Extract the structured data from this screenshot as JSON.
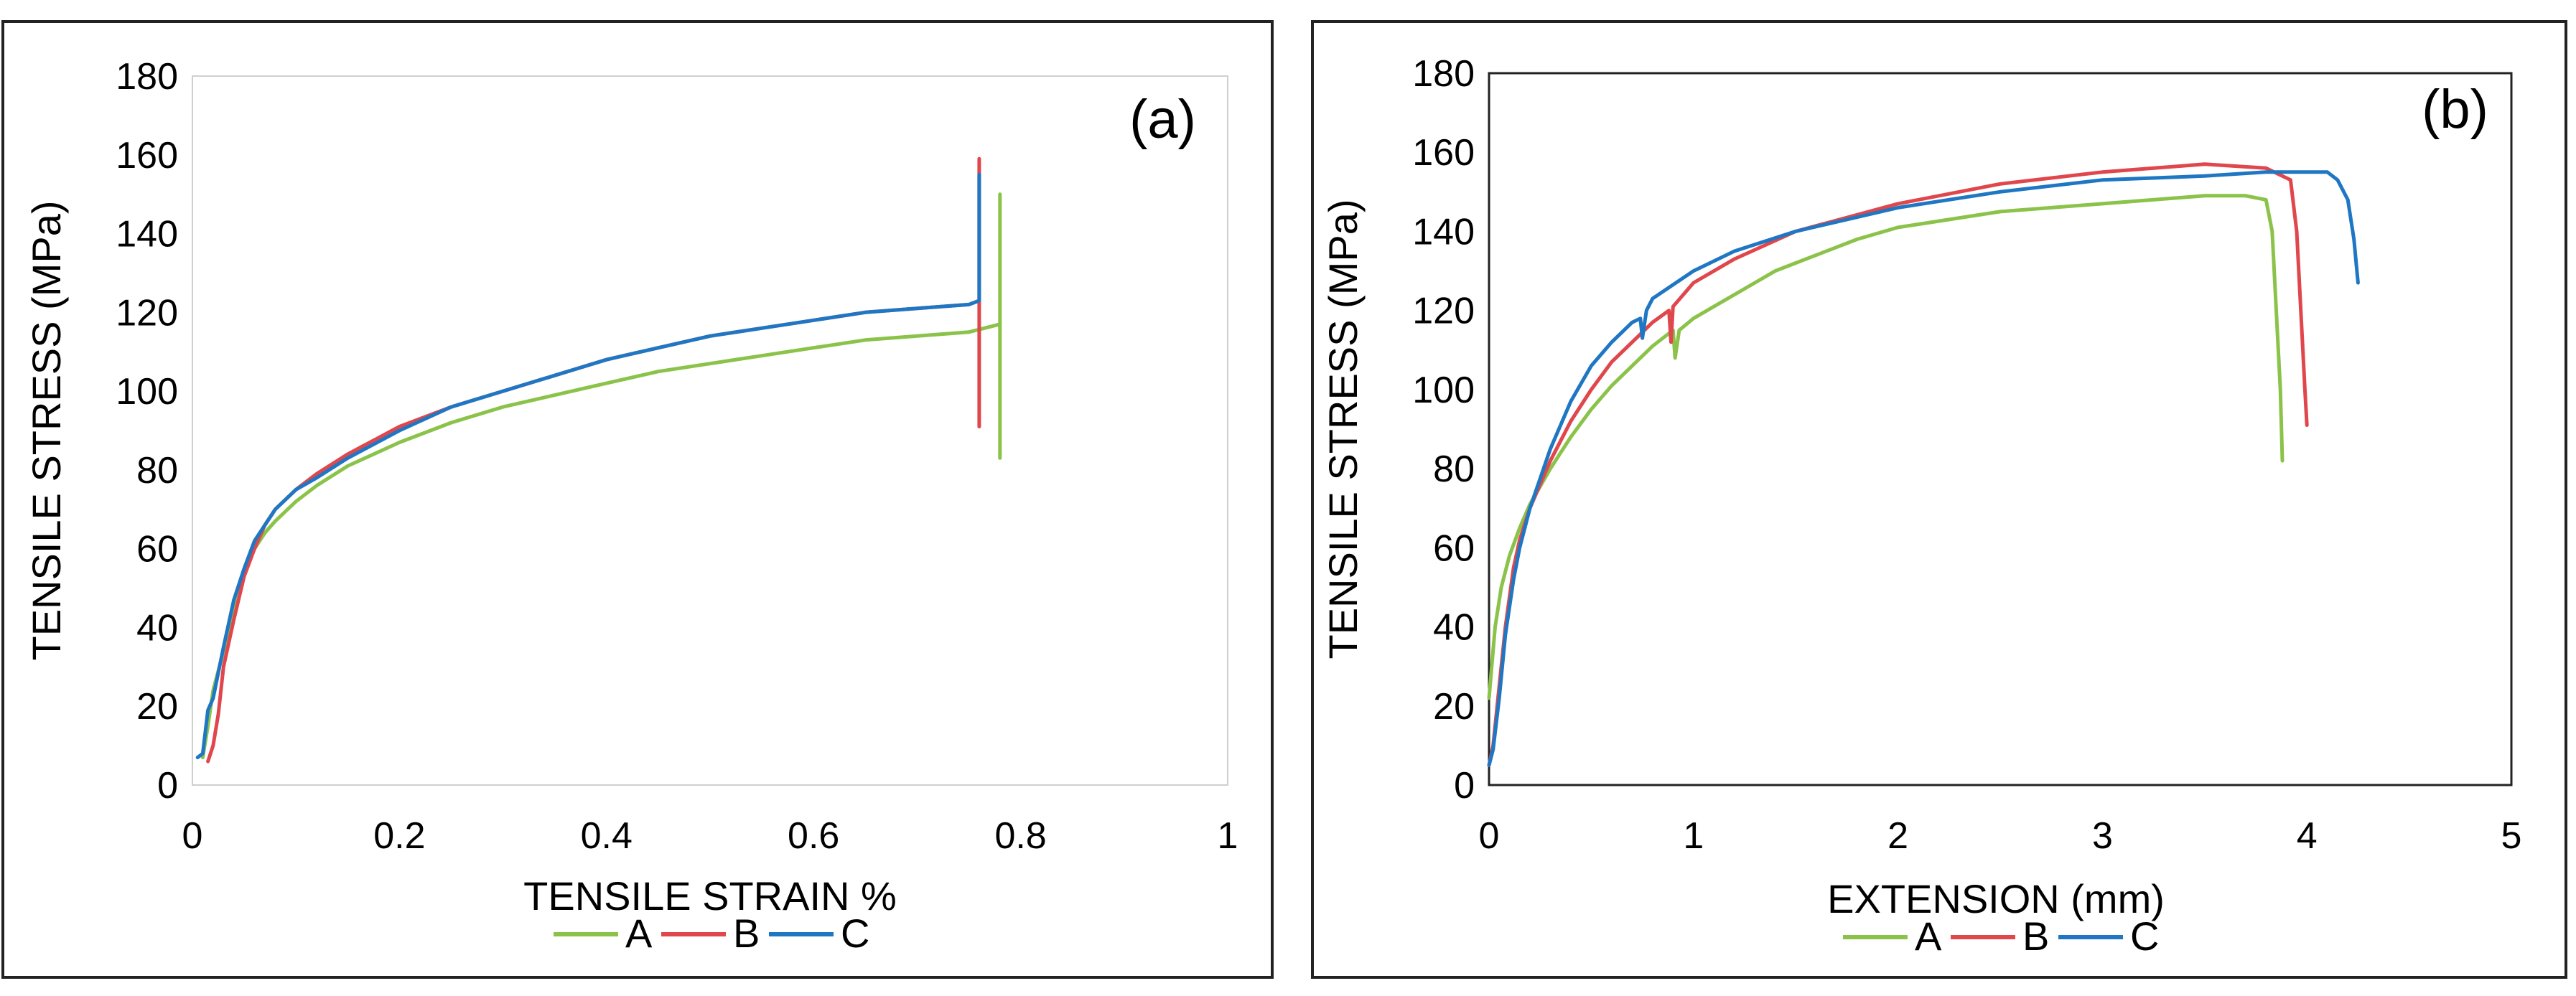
{
  "chart_data": [
    {
      "type": "line",
      "panel_label": "(a)",
      "xlabel": "TENSILE STRAIN %",
      "ylabel": "TENSILE STRESS (MPa)",
      "xlim": [
        0,
        1
      ],
      "ylim": [
        0,
        180
      ],
      "xticks": [
        "0",
        "0.2",
        "0.4",
        "0.6",
        "0.8",
        "1"
      ],
      "yticks": [
        "0",
        "20",
        "40",
        "60",
        "80",
        "100",
        "120",
        "140",
        "160",
        "180"
      ],
      "grid": false,
      "legend_position": "bottom",
      "series": [
        {
          "name": "A",
          "color": "#8bc34a",
          "x": [
            0.01,
            0.015,
            0.02,
            0.03,
            0.04,
            0.05,
            0.06,
            0.07,
            0.08,
            0.1,
            0.12,
            0.15,
            0.2,
            0.25,
            0.3,
            0.35,
            0.4,
            0.45,
            0.5,
            0.55,
            0.6,
            0.65,
            0.7,
            0.75,
            0.78,
            0.78,
            0.78,
            0.78
          ],
          "y": [
            7,
            15,
            24,
            34,
            45,
            54,
            60,
            64,
            67,
            72,
            76,
            81,
            87,
            92,
            96,
            99,
            102,
            105,
            107,
            109,
            111,
            113,
            114,
            115,
            117,
            83,
            150,
            117
          ]
        },
        {
          "name": "B",
          "color": "#e0474c",
          "x": [
            0.015,
            0.02,
            0.025,
            0.03,
            0.04,
            0.05,
            0.06,
            0.07,
            0.08,
            0.1,
            0.12,
            0.15,
            0.2,
            0.25,
            0.3,
            0.35,
            0.4,
            0.45,
            0.5,
            0.55,
            0.6,
            0.65,
            0.7,
            0.75,
            0.76,
            0.76,
            0.76
          ],
          "y": [
            6,
            10,
            18,
            30,
            42,
            53,
            60,
            66,
            70,
            75,
            79,
            84,
            91,
            96,
            100,
            104,
            108,
            111,
            114,
            116,
            118,
            120,
            121,
            122,
            123,
            91,
            159
          ]
        },
        {
          "name": "C",
          "color": "#1f77c4",
          "x": [
            0.005,
            0.01,
            0.015,
            0.02,
            0.03,
            0.04,
            0.05,
            0.06,
            0.07,
            0.08,
            0.1,
            0.12,
            0.15,
            0.2,
            0.25,
            0.3,
            0.35,
            0.4,
            0.45,
            0.5,
            0.55,
            0.6,
            0.65,
            0.7,
            0.75,
            0.76,
            0.76
          ],
          "y": [
            7,
            8,
            19,
            22,
            35,
            47,
            55,
            62,
            66,
            70,
            75,
            78,
            83,
            90,
            96,
            100,
            104,
            108,
            111,
            114,
            116,
            118,
            120,
            121,
            122,
            123,
            155
          ]
        }
      ]
    },
    {
      "type": "line",
      "panel_label": "(b)",
      "xlabel": "EXTENSION (mm)",
      "ylabel": "TENSILE STRESS (MPa)",
      "xlim": [
        0,
        5
      ],
      "ylim": [
        0,
        180
      ],
      "xticks": [
        "0",
        "1",
        "2",
        "3",
        "4",
        "5"
      ],
      "yticks": [
        "0",
        "20",
        "40",
        "60",
        "80",
        "100",
        "120",
        "140",
        "160",
        "180"
      ],
      "grid": false,
      "legend_position": "bottom",
      "series": [
        {
          "name": "A",
          "color": "#8bc34a",
          "x": [
            0,
            0.03,
            0.06,
            0.1,
            0.15,
            0.2,
            0.3,
            0.4,
            0.5,
            0.6,
            0.7,
            0.8,
            0.9,
            0.91,
            0.93,
            1.0,
            1.2,
            1.3,
            1.4,
            1.5,
            1.8,
            2.0,
            2.5,
            3.0,
            3.5,
            3.7,
            3.8,
            3.83,
            3.85,
            3.87,
            3.88
          ],
          "y": [
            22,
            40,
            50,
            58,
            65,
            71,
            80,
            88,
            95,
            101,
            106,
            111,
            115,
            108,
            115,
            118,
            124,
            127,
            130,
            132,
            138,
            141,
            145,
            147,
            149,
            149,
            148,
            140,
            120,
            100,
            82
          ]
        },
        {
          "name": "B",
          "color": "#e0474c",
          "x": [
            0,
            0.02,
            0.05,
            0.08,
            0.12,
            0.15,
            0.2,
            0.3,
            0.4,
            0.5,
            0.6,
            0.7,
            0.8,
            0.88,
            0.89,
            0.9,
            0.95,
            1.0,
            1.2,
            1.5,
            2.0,
            2.5,
            3.0,
            3.5,
            3.8,
            3.92,
            3.95,
            3.97,
            3.99,
            4.0
          ],
          "y": [
            5,
            10,
            25,
            40,
            55,
            62,
            70,
            82,
            92,
            100,
            107,
            112,
            117,
            120,
            112,
            121,
            124,
            127,
            133,
            140,
            147,
            152,
            155,
            157,
            156,
            153,
            140,
            120,
            100,
            91
          ]
        },
        {
          "name": "C",
          "color": "#1f77c4",
          "x": [
            0,
            0.02,
            0.05,
            0.08,
            0.12,
            0.15,
            0.2,
            0.3,
            0.4,
            0.5,
            0.6,
            0.7,
            0.74,
            0.75,
            0.77,
            0.8,
            1.0,
            1.2,
            1.5,
            2.0,
            2.5,
            3.0,
            3.5,
            3.8,
            4.0,
            4.1,
            4.15,
            4.2,
            4.23,
            4.25
          ],
          "y": [
            5,
            9,
            22,
            38,
            52,
            60,
            70,
            85,
            97,
            106,
            112,
            117,
            118,
            113,
            120,
            123,
            130,
            135,
            140,
            146,
            150,
            153,
            154,
            155,
            155,
            155,
            153,
            148,
            138,
            127
          ]
        }
      ]
    }
  ]
}
